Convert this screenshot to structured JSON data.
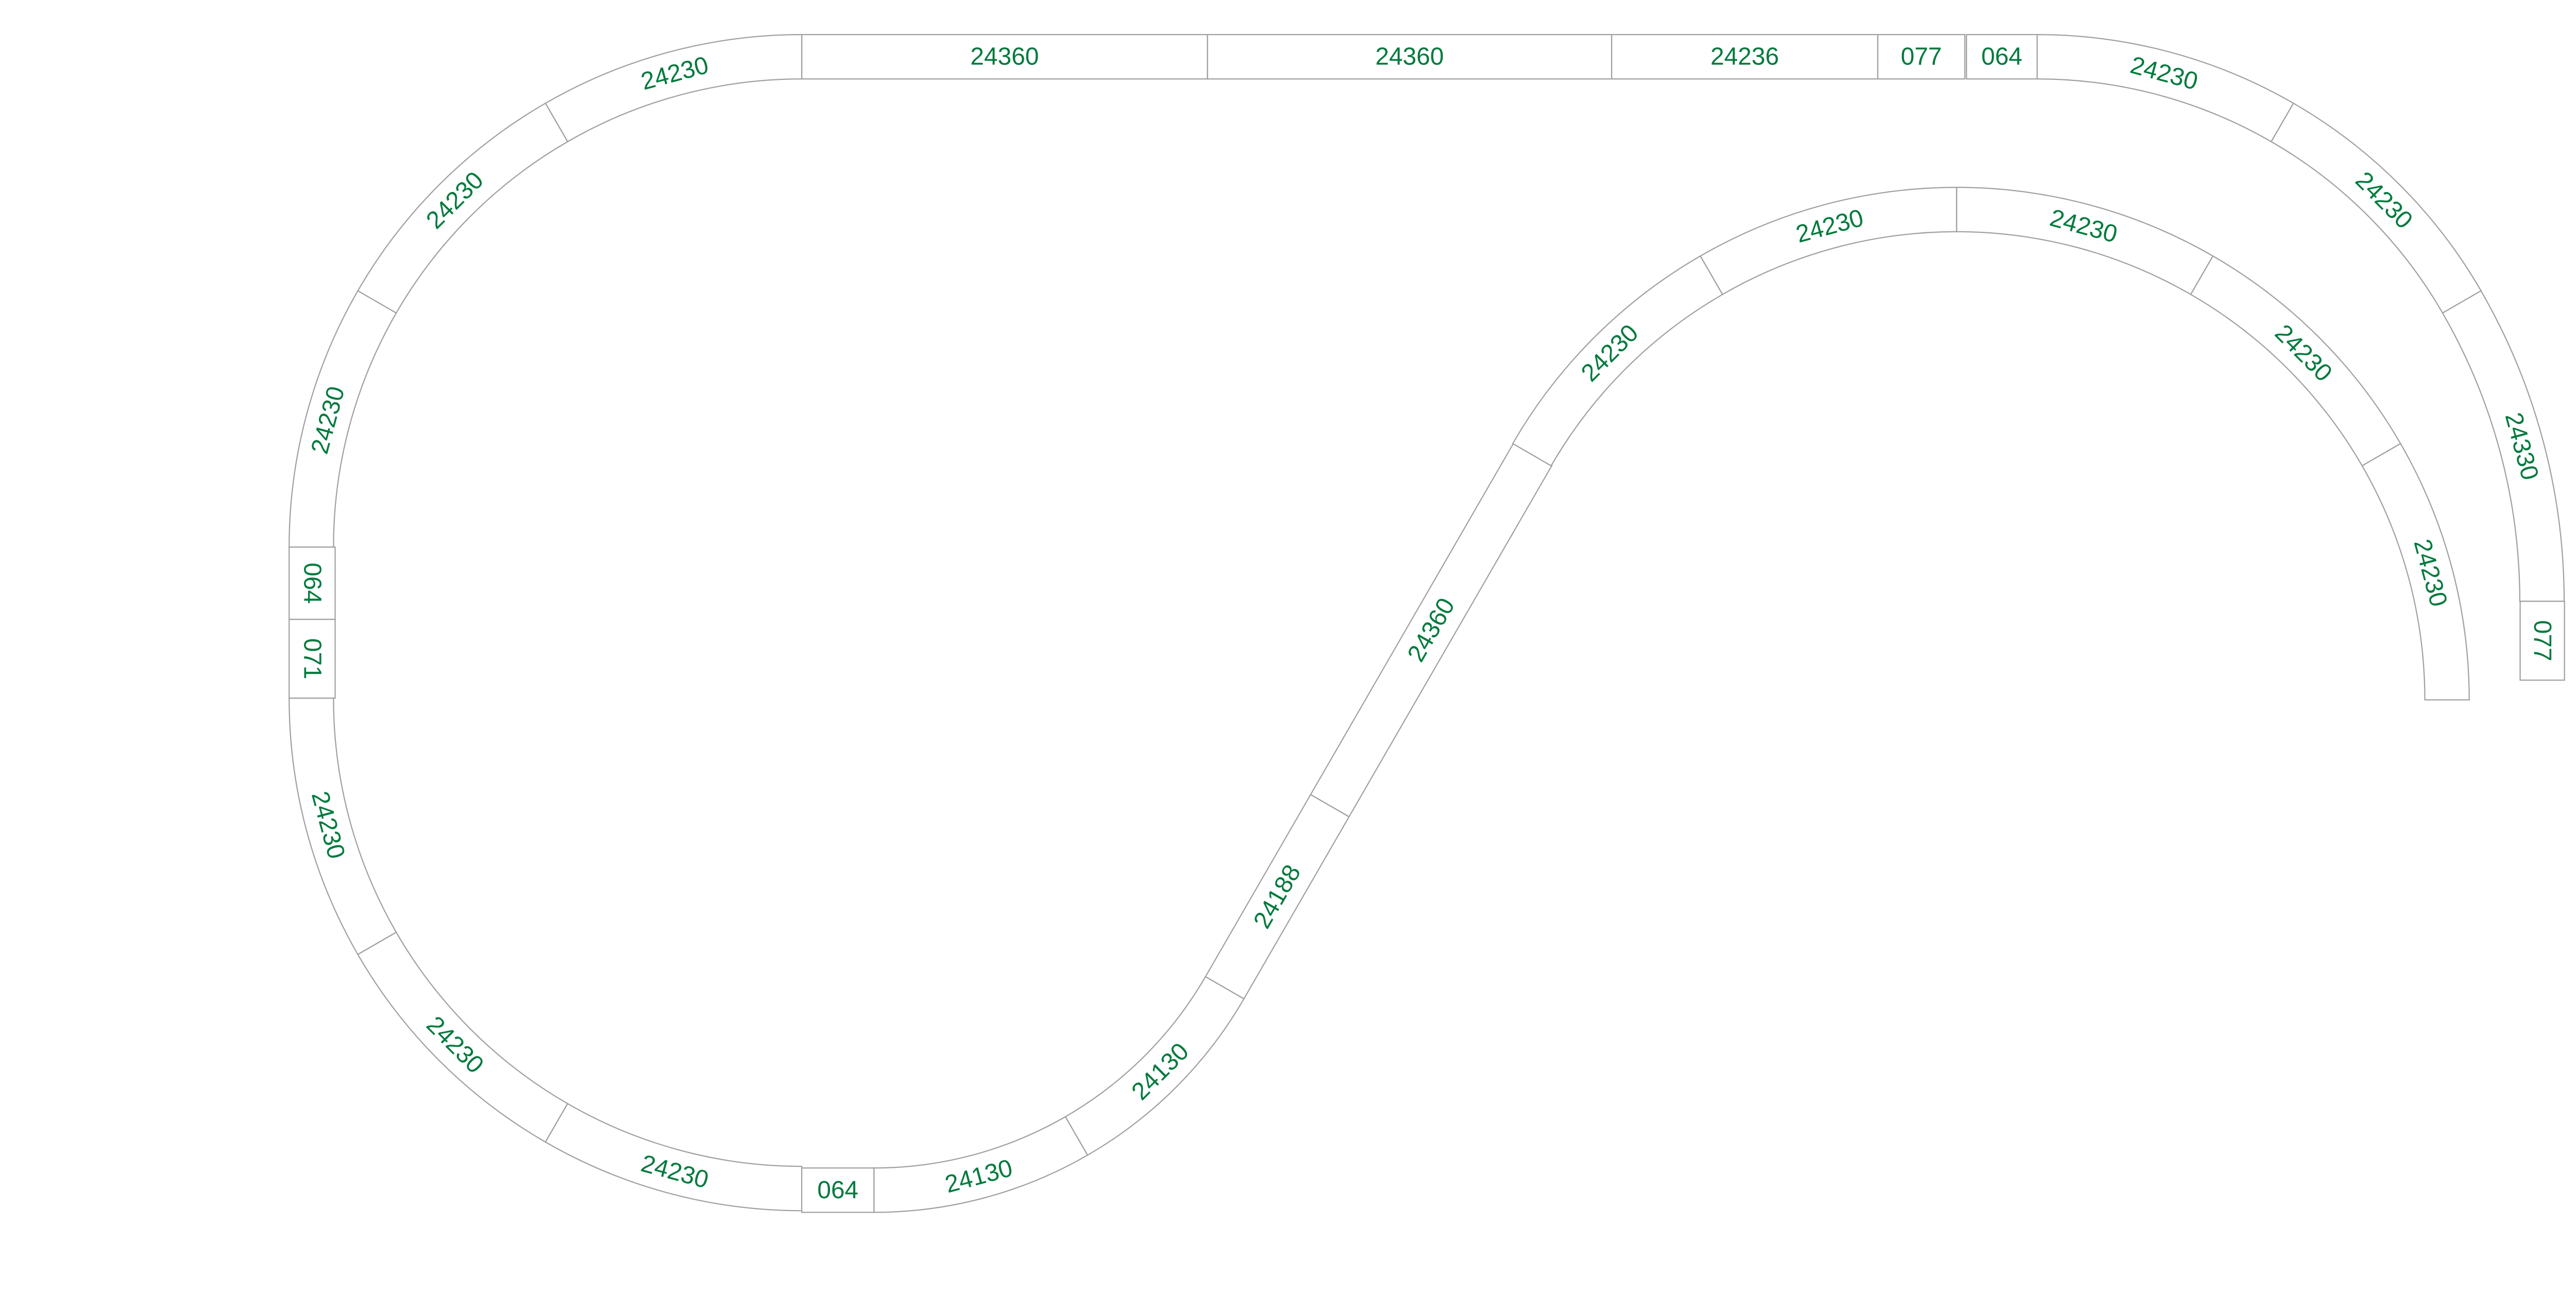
{
  "colors": {
    "track_outline": "#a0a0a0",
    "label": "#007a3d",
    "background": "#ffffff"
  },
  "tracks": [
    {
      "label": "24360",
      "kind": "straight"
    },
    {
      "label": "24360",
      "kind": "straight"
    },
    {
      "label": "24236",
      "kind": "straight"
    },
    {
      "label": "077",
      "kind": "straight"
    },
    {
      "label": "064",
      "kind": "straight"
    },
    {
      "label": "24230",
      "kind": "curve"
    },
    {
      "label": "24230",
      "kind": "curve"
    },
    {
      "label": "24330",
      "kind": "curve"
    },
    {
      "label": "077",
      "kind": "straight"
    },
    {
      "label": "24230",
      "kind": "curve"
    },
    {
      "label": "24230",
      "kind": "curve"
    },
    {
      "label": "24230",
      "kind": "curve"
    },
    {
      "label": "064",
      "kind": "straight"
    },
    {
      "label": "071",
      "kind": "straight"
    },
    {
      "label": "24230",
      "kind": "curve"
    },
    {
      "label": "24230",
      "kind": "curve"
    },
    {
      "label": "24230",
      "kind": "curve"
    },
    {
      "label": "064",
      "kind": "straight"
    },
    {
      "label": "24130",
      "kind": "curve"
    },
    {
      "label": "24130",
      "kind": "curve"
    },
    {
      "label": "24188",
      "kind": "straight"
    },
    {
      "label": "24360",
      "kind": "straight"
    },
    {
      "label": "24230",
      "kind": "curve"
    },
    {
      "label": "24230",
      "kind": "curve"
    },
    {
      "label": "24230",
      "kind": "curve"
    },
    {
      "label": "24230",
      "kind": "curve"
    },
    {
      "label": "24230",
      "kind": "curve"
    }
  ]
}
